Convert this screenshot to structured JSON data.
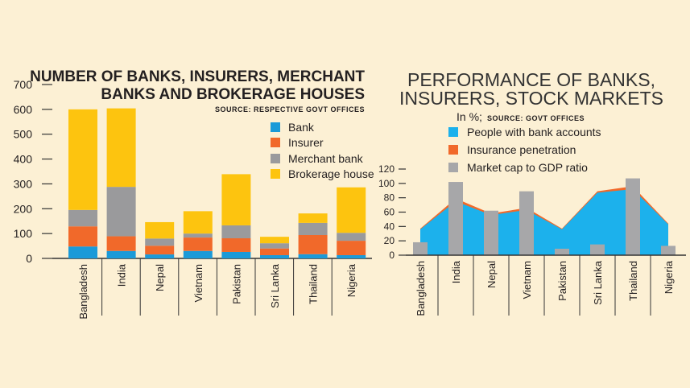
{
  "chart_data": [
    {
      "type": "bar",
      "stacked": true,
      "title": "NUMBER OF BANKS, INSURERS, MERCHANT BANKS AND BROKERAGE HOUSES",
      "title_lines": [
        "NUMBER OF BANKS, INSURERS, MERCHANT",
        "BANKS AND BROKERAGE HOUSES"
      ],
      "source": "SOURCE: RESPECTIVE GOVT OFFICES",
      "categories": [
        "Bangladesh",
        "India",
        "Nepal",
        "Vietnam",
        "Pakistan",
        "Sri Lanka",
        "Thailand",
        "Nigeria"
      ],
      "ylim": [
        0,
        700
      ],
      "yticks": [
        0,
        100,
        200,
        300,
        400,
        500,
        600,
        700
      ],
      "grid": false,
      "legend": "top-right",
      "series": [
        {
          "name": "Bank",
          "color": "#1b9ad8",
          "values": [
            48,
            30,
            16,
            30,
            26,
            13,
            17,
            13
          ]
        },
        {
          "name": "Insurer",
          "color": "#f1692a",
          "values": [
            81,
            59,
            35,
            54,
            55,
            27,
            77,
            58
          ]
        },
        {
          "name": "Merchant bank",
          "color": "#9a9a9c",
          "values": [
            66,
            199,
            29,
            16,
            52,
            21,
            49,
            32
          ]
        },
        {
          "name": "Brokerage house",
          "color": "#fdc40f",
          "values": [
            405,
            316,
            66,
            90,
            206,
            26,
            38,
            183
          ]
        }
      ]
    },
    {
      "type": "area",
      "title": "PERFORMANCE OF BANKS, INSURERS, STOCK MARKETS",
      "title_lines": [
        "PERFORMANCE OF BANKS,",
        "INSURERS, STOCK MARKETS"
      ],
      "unit": "In %;",
      "source": "SOURCE: GOVT OFFICES",
      "categories": [
        "Bangladesh",
        "India",
        "Nepal",
        "Vietnam",
        "Pakistan",
        "Sri Lanka",
        "Thailand",
        "Nigeria"
      ],
      "ylim": [
        0,
        120
      ],
      "yticks": [
        0,
        20,
        40,
        60,
        80,
        100,
        120
      ],
      "grid": false,
      "legend": "top",
      "series": [
        {
          "name": "People with bank accounts",
          "type": "area",
          "color": "#1cb1ec",
          "values": [
            36,
            75,
            56,
            63,
            36,
            87,
            92,
            43
          ]
        },
        {
          "name": "Insurance penetration",
          "type": "area-stacked",
          "color": "#f1692a",
          "values": [
            1,
            4,
            2,
            3,
            1,
            2,
            4,
            1
          ]
        },
        {
          "name": "Market cap to GDP ratio",
          "type": "bar",
          "color": "#a7a7a9",
          "values": [
            18,
            102,
            62,
            89,
            9,
            15,
            107,
            13
          ]
        }
      ]
    }
  ]
}
